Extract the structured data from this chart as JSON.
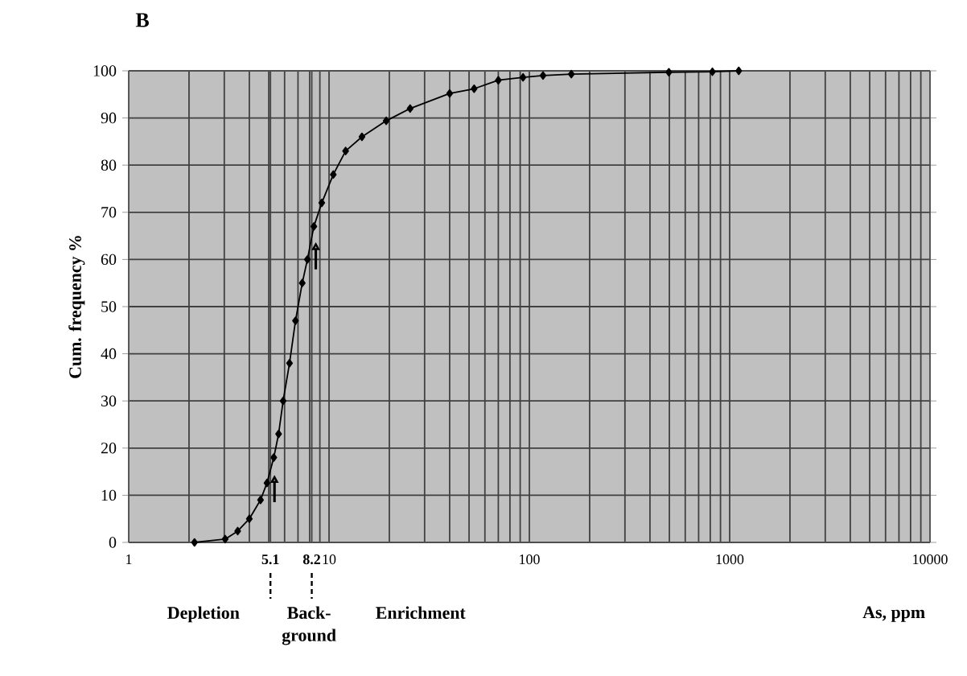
{
  "chart_data": {
    "type": "line",
    "title": "B",
    "xlabel": "As, ppm",
    "ylabel": "Cum. frequency %",
    "log": "x",
    "grid": true,
    "marker": "diamond",
    "line_style": "solid",
    "xlim": [
      1,
      10000
    ],
    "xticks": [
      1,
      5.1,
      8.2,
      10,
      100,
      1000,
      10000
    ],
    "ylim": [
      0,
      100
    ],
    "yticks": [
      0,
      10,
      20,
      30,
      40,
      50,
      60,
      70,
      80,
      90,
      100
    ],
    "series": [
      {
        "color": "#000000",
        "x": [
          2.13,
          3.03,
          3.5,
          4.0,
          4.55,
          4.9,
          5.3,
          5.6,
          5.9,
          6.35,
          6.8,
          7.35,
          7.8,
          8.4,
          9.2,
          10.5,
          12.1,
          14.6,
          19.3,
          25.4,
          40,
          53,
          70,
          93,
          117,
          162,
          497,
          820,
          1110
        ],
        "values": [
          0,
          0.7,
          2.4,
          5,
          9,
          12.6,
          18,
          23,
          30,
          38,
          47,
          55,
          60,
          67,
          72,
          78,
          83,
          86,
          89.4,
          92,
          95.2,
          96.2,
          98,
          98.6,
          99,
          99.3,
          99.7,
          99.8,
          100
        ]
      }
    ],
    "annotations": [
      "Depletion",
      "Back-ground",
      "Enrichment"
    ]
  }
}
